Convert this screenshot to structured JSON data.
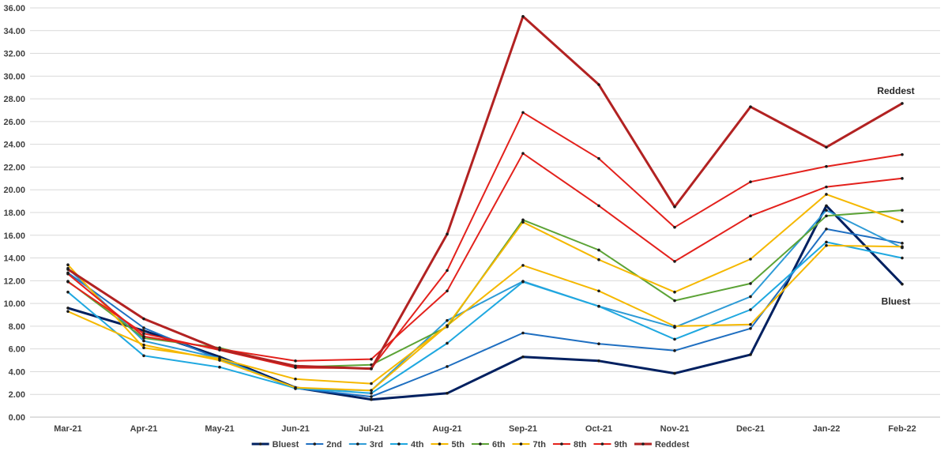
{
  "chart_data": {
    "type": "line",
    "title": "",
    "xlabel": "",
    "ylabel": "",
    "ylim": [
      0,
      36
    ],
    "y_step": 2,
    "grid": true,
    "legend_position": "bottom",
    "categories": [
      "Mar-21",
      "Apr-21",
      "May-21",
      "Jun-21",
      "Jul-21",
      "Aug-21",
      "Sep-21",
      "Oct-21",
      "Nov-21",
      "Dec-21",
      "Jan-22",
      "Feb-22"
    ],
    "series": [
      {
        "name": "Bluest",
        "color": "#002060",
        "width": 3,
        "values": [
          9.6,
          7.6,
          5.3,
          2.6,
          1.55,
          2.1,
          5.3,
          4.95,
          3.85,
          5.5,
          18.6,
          11.7
        ]
      },
      {
        "name": "2nd",
        "color": "#1F6FC1",
        "width": 2,
        "values": [
          12.7,
          7.85,
          5.1,
          2.55,
          1.8,
          4.45,
          7.4,
          6.45,
          5.85,
          7.8,
          16.55,
          15.3
        ]
      },
      {
        "name": "3rd",
        "color": "#2E9BD6",
        "width": 2,
        "values": [
          13.1,
          6.7,
          5.2,
          2.5,
          2.35,
          8.5,
          11.95,
          9.75,
          7.9,
          10.6,
          18.2,
          14.9
        ]
      },
      {
        "name": "4th",
        "color": "#1FA8E0",
        "width": 2,
        "values": [
          11.0,
          5.4,
          4.4,
          2.55,
          2.1,
          6.5,
          11.9,
          9.75,
          6.85,
          9.45,
          15.4,
          14.0
        ]
      },
      {
        "name": "5th",
        "color": "#F5B800",
        "width": 2,
        "values": [
          9.3,
          6.35,
          5.0,
          2.6,
          2.35,
          8.05,
          13.35,
          11.1,
          8.0,
          8.15,
          15.1,
          15.0
        ]
      },
      {
        "name": "6th",
        "color": "#5CA336",
        "width": 2,
        "values": [
          11.95,
          6.95,
          6.1,
          4.4,
          4.6,
          7.95,
          17.35,
          14.7,
          10.25,
          11.75,
          17.7,
          18.2
        ]
      },
      {
        "name": "7th",
        "color": "#F5B800",
        "width": 2,
        "values": [
          13.4,
          6.1,
          5.15,
          3.35,
          2.95,
          8.05,
          17.15,
          13.85,
          11.0,
          13.9,
          19.6,
          17.2
        ]
      },
      {
        "name": "8th",
        "color": "#E3211C",
        "width": 2,
        "values": [
          12.6,
          7.1,
          6.0,
          4.95,
          5.1,
          11.1,
          23.2,
          18.6,
          13.7,
          17.7,
          20.25,
          21.0
        ]
      },
      {
        "name": "9th",
        "color": "#E3211C",
        "width": 2,
        "values": [
          11.9,
          7.35,
          5.9,
          4.35,
          4.3,
          12.9,
          26.8,
          22.75,
          16.7,
          20.7,
          22.05,
          23.1
        ]
      },
      {
        "name": "Reddest",
        "color": "#B22222",
        "width": 3,
        "values": [
          13.0,
          8.65,
          5.95,
          4.5,
          4.25,
          16.1,
          35.25,
          29.25,
          18.5,
          27.3,
          23.75,
          27.6
        ]
      }
    ],
    "annotations": [
      {
        "text": "Reddest",
        "series": "Reddest",
        "category": "Feb-22"
      },
      {
        "text": "Bluest",
        "series": "Bluest",
        "category": "Feb-22"
      }
    ]
  }
}
